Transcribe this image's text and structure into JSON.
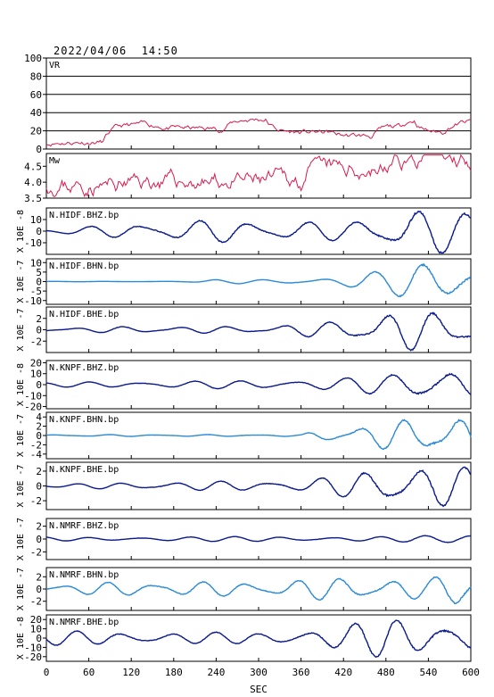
{
  "title": "2022/04/06  14:50",
  "chart_data": {
    "type": "line",
    "xlabel": "SEC",
    "x_ticks": [
      "0",
      "60",
      "120",
      "180",
      "240",
      "300",
      "360",
      "420",
      "480",
      "540",
      "600"
    ],
    "xlim": [
      0,
      600
    ],
    "colors": {
      "vr": "#d81b4e",
      "dark": "#0a1a8c",
      "light": "#2a8ad6"
    },
    "panels": [
      {
        "label": "VR",
        "ylabel": "",
        "ylim": [
          0,
          100
        ],
        "ticks": [
          "0",
          "20",
          "40",
          "60",
          "80",
          "100"
        ],
        "tickvals": [
          0,
          20,
          40,
          60,
          80,
          100
        ],
        "grid": true,
        "color": "vr",
        "kind": "vr"
      },
      {
        "label": "Mw",
        "ylabel": "",
        "ylim": [
          3.5,
          4.9
        ],
        "ticks": [
          "3.5",
          "4.0",
          "4.5"
        ],
        "tickvals": [
          3.5,
          4.0,
          4.5
        ],
        "grid": false,
        "color": "vr",
        "kind": "mw"
      },
      {
        "label": "N.HIDF.BHZ.bp",
        "ylabel": "X 10E -8",
        "ylim": [
          -20,
          20
        ],
        "ticks": [
          "-10",
          "0",
          "10"
        ],
        "tickvals": [
          -10,
          0,
          10
        ],
        "color": "dark",
        "seed": 1,
        "envelope": [
          [
            0,
            2
          ],
          [
            60,
            4
          ],
          [
            120,
            7
          ],
          [
            240,
            10
          ],
          [
            420,
            8
          ],
          [
            450,
            12
          ],
          [
            480,
            16
          ],
          [
            510,
            20
          ],
          [
            600,
            18
          ]
        ]
      },
      {
        "label": "N.HIDF.BHN.bp",
        "ylabel": "X 10E -7",
        "ylim": [
          -12,
          12
        ],
        "ticks": [
          "-10",
          "-5",
          "0",
          "5",
          "10"
        ],
        "tickvals": [
          -10,
          -5,
          0,
          5,
          10
        ],
        "color": "light",
        "seed": 2,
        "envelope": [
          [
            0,
            0.1
          ],
          [
            200,
            0.2
          ],
          [
            240,
            1
          ],
          [
            360,
            1.5
          ],
          [
            420,
            3
          ],
          [
            480,
            6
          ],
          [
            510,
            9
          ],
          [
            540,
            11
          ],
          [
            600,
            10
          ]
        ]
      },
      {
        "label": "N.HIDF.BHE.bp",
        "ylabel": "X 10E -7",
        "ylim": [
          -4,
          4
        ],
        "ticks": [
          "-2",
          "0",
          "2"
        ],
        "tickvals": [
          -2,
          0,
          2
        ],
        "color": "dark",
        "seed": 3,
        "envelope": [
          [
            0,
            0.3
          ],
          [
            120,
            0.6
          ],
          [
            300,
            0.6
          ],
          [
            400,
            1.5
          ],
          [
            450,
            2.5
          ],
          [
            510,
            3.6
          ],
          [
            540,
            3.5
          ],
          [
            600,
            3
          ]
        ]
      },
      {
        "label": "N.KNPF.BHZ.bp",
        "ylabel": "X 10E -8",
        "ylim": [
          -22,
          22
        ],
        "ticks": [
          "-20",
          "-10",
          "0",
          "10",
          "20"
        ],
        "tickvals": [
          -20,
          -10,
          0,
          10,
          20
        ],
        "color": "dark",
        "seed": 4,
        "envelope": [
          [
            0,
            2
          ],
          [
            120,
            3
          ],
          [
            300,
            4
          ],
          [
            420,
            6
          ],
          [
            480,
            10
          ],
          [
            540,
            20
          ],
          [
            570,
            16
          ],
          [
            600,
            12
          ]
        ]
      },
      {
        "label": "N.KNPF.BHN.bp",
        "ylabel": "X 10E -7",
        "ylim": [
          -5,
          5
        ],
        "ticks": [
          "-4",
          "-2",
          "0",
          "2",
          "4"
        ],
        "tickvals": [
          -4,
          -2,
          0,
          2,
          4
        ],
        "color": "light",
        "seed": 5,
        "envelope": [
          [
            0,
            0.2
          ],
          [
            360,
            0.2
          ],
          [
            380,
            1
          ],
          [
            420,
            1.8
          ],
          [
            480,
            3
          ],
          [
            540,
            4.5
          ],
          [
            600,
            4
          ]
        ]
      },
      {
        "label": "N.KNPF.BHE.bp",
        "ylabel": "X 10E -7",
        "ylim": [
          -3.2,
          3.2
        ],
        "ticks": [
          "-2",
          "0",
          "2"
        ],
        "tickvals": [
          -2,
          0,
          2
        ],
        "color": "dark",
        "seed": 6,
        "envelope": [
          [
            0,
            0.2
          ],
          [
            120,
            0.5
          ],
          [
            360,
            0.8
          ],
          [
            420,
            1.5
          ],
          [
            480,
            3
          ],
          [
            540,
            3
          ],
          [
            600,
            2.5
          ]
        ]
      },
      {
        "label": "N.NMRF.BHZ.bp",
        "ylabel": "X 10E -7",
        "ylim": [
          -3.2,
          3.2
        ],
        "ticks": [
          "-2",
          "0",
          "2"
        ],
        "tickvals": [
          -2,
          0,
          2
        ],
        "color": "dark",
        "seed": 7,
        "envelope": [
          [
            0,
            0.3
          ],
          [
            300,
            0.4
          ],
          [
            480,
            0.4
          ],
          [
            560,
            0.6
          ],
          [
            600,
            0.8
          ]
        ]
      },
      {
        "label": "N.NMRF.BHN.bp",
        "ylabel": "X 10E -7",
        "ylim": [
          -3.5,
          3.5
        ],
        "ticks": [
          "-2",
          "0",
          "2"
        ],
        "tickvals": [
          -2,
          0,
          2
        ],
        "color": "light",
        "seed": 8,
        "envelope": [
          [
            0,
            0.8
          ],
          [
            120,
            1.2
          ],
          [
            300,
            1.2
          ],
          [
            420,
            2
          ],
          [
            480,
            1.8
          ],
          [
            540,
            1.6
          ],
          [
            580,
            3.4
          ],
          [
            600,
            3
          ]
        ]
      },
      {
        "label": "N.NMRF.BHE.bp",
        "ylabel": "X 10E -8",
        "ylim": [
          -25,
          25
        ],
        "ticks": [
          "-20",
          "-10",
          "0",
          "10",
          "20"
        ],
        "tickvals": [
          -20,
          -10,
          0,
          10,
          20
        ],
        "color": "dark",
        "seed": 9,
        "envelope": [
          [
            0,
            8
          ],
          [
            120,
            7
          ],
          [
            300,
            6
          ],
          [
            420,
            14
          ],
          [
            480,
            22
          ],
          [
            540,
            20
          ],
          [
            600,
            18
          ]
        ]
      }
    ]
  }
}
